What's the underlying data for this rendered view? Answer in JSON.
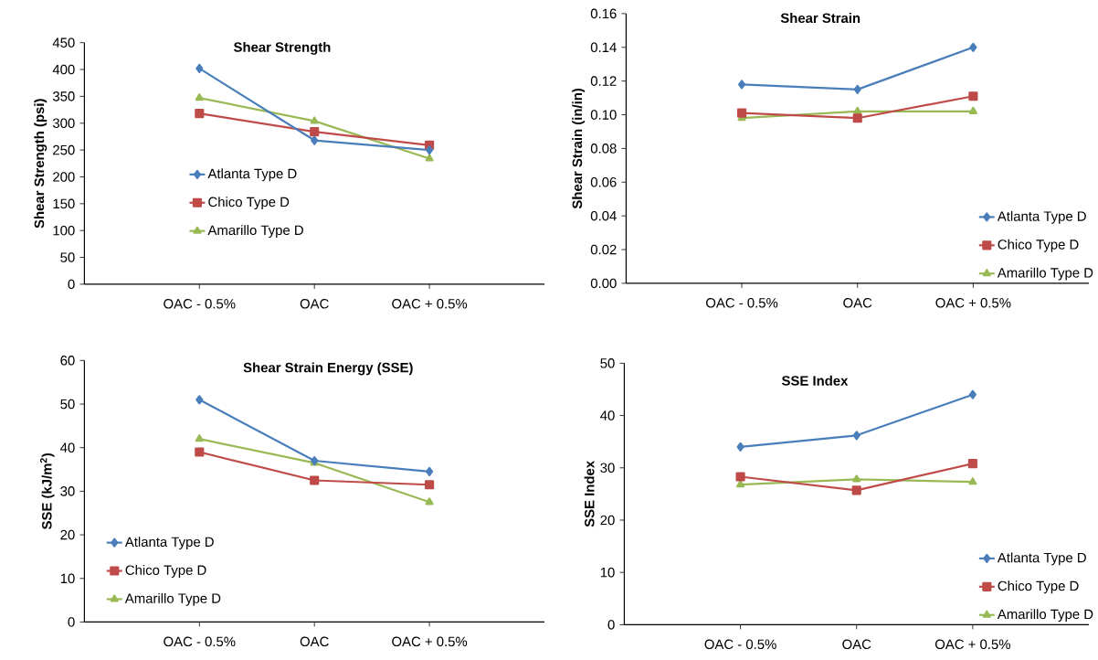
{
  "chart_data": [
    {
      "type": "line",
      "title": "Shear Strength",
      "ylabel": "Shear Strength (psi)",
      "categories": [
        "OAC - 0.5%",
        "OAC",
        "OAC + 0.5%"
      ],
      "ylim": [
        0,
        450
      ],
      "yticks": [
        0,
        50,
        100,
        150,
        200,
        250,
        300,
        350,
        400,
        450
      ],
      "legend": "bottom",
      "series": [
        {
          "name": "Atlanta Type D",
          "color": "#4a7ebb",
          "marker": "diamond",
          "values": [
            402,
            268,
            250
          ]
        },
        {
          "name": "Chico Type D",
          "color": "#be4b48",
          "marker": "square",
          "values": [
            318,
            284,
            259
          ]
        },
        {
          "name": "Amarillo Type D",
          "color": "#98b954",
          "marker": "triangle",
          "values": [
            347,
            304,
            234
          ]
        }
      ]
    },
    {
      "type": "line",
      "title": "Shear Strain",
      "ylabel": "Shear Strain (in/in)",
      "categories": [
        "OAC - 0.5%",
        "OAC",
        "OAC + 0.5%"
      ],
      "ylim": [
        0,
        0.16
      ],
      "yticks": [
        {
          "value": 0,
          "label": "0.00"
        },
        {
          "value": 0.02,
          "label": "0.02"
        },
        {
          "value": 0.04,
          "label": "0.04"
        },
        {
          "value": 0.06,
          "label": "0.06"
        },
        {
          "value": 0.08,
          "label": "0.08"
        },
        {
          "value": 0.1,
          "label": "0.10"
        },
        {
          "value": 0.12,
          "label": "0.12"
        },
        {
          "value": 0.14,
          "label": "0.14"
        },
        {
          "value": 0.16,
          "label": "0.16"
        }
      ],
      "legend": "bottom right",
      "series": [
        {
          "name": "Atlanta Type D",
          "color": "#4a7ebb",
          "marker": "diamond",
          "values": [
            0.118,
            0.115,
            0.14
          ]
        },
        {
          "name": "Chico Type D",
          "color": "#be4b48",
          "marker": "square",
          "values": [
            0.101,
            0.098,
            0.111
          ]
        },
        {
          "name": "Amarillo Type D",
          "color": "#98b954",
          "marker": "triangle",
          "values": [
            0.098,
            0.102,
            0.102
          ]
        }
      ]
    },
    {
      "type": "line",
      "title": "Shear Strain Energy (SSE)",
      "ylabel": "SSE (kJ/m$^{2}$)",
      "categories": [
        "OAC - 0.5%",
        "OAC",
        "OAC + 0.5%"
      ],
      "ylim": [
        0,
        60
      ],
      "yticks": [
        0,
        10,
        20,
        30,
        40,
        50,
        60
      ],
      "legend": "bottom left",
      "series": [
        {
          "name": "Atlanta Type D",
          "color": "#4a7ebb",
          "marker": "diamond",
          "values": [
            51,
            37,
            34.5
          ]
        },
        {
          "name": "Chico Type D",
          "color": "#be4b48",
          "marker": "square",
          "values": [
            39,
            32.5,
            31.5
          ]
        },
        {
          "name": "Amarillo Type D",
          "color": "#98b954",
          "marker": "triangle",
          "values": [
            42,
            36.5,
            27.5
          ]
        }
      ]
    },
    {
      "type": "line",
      "title": "SSE Index",
      "ylabel": "SSE Index",
      "categories": [
        "OAC - 0.5%",
        "OAC",
        "OAC + 0.5%"
      ],
      "ylim": [
        0,
        50
      ],
      "yticks": [
        0,
        10,
        20,
        30,
        40,
        50
      ],
      "legend": "bottom right",
      "series": [
        {
          "name": "Atlanta Type D",
          "color": "#4a7ebb",
          "marker": "diamond",
          "values": [
            34,
            36.2,
            44
          ]
        },
        {
          "name": "Chico Type D",
          "color": "#be4b48",
          "marker": "square",
          "values": [
            28.3,
            25.7,
            30.8
          ]
        },
        {
          "name": "Amarillo Type D",
          "color": "#98b954",
          "marker": "triangle",
          "values": [
            26.8,
            27.8,
            27.3
          ]
        }
      ]
    }
  ]
}
